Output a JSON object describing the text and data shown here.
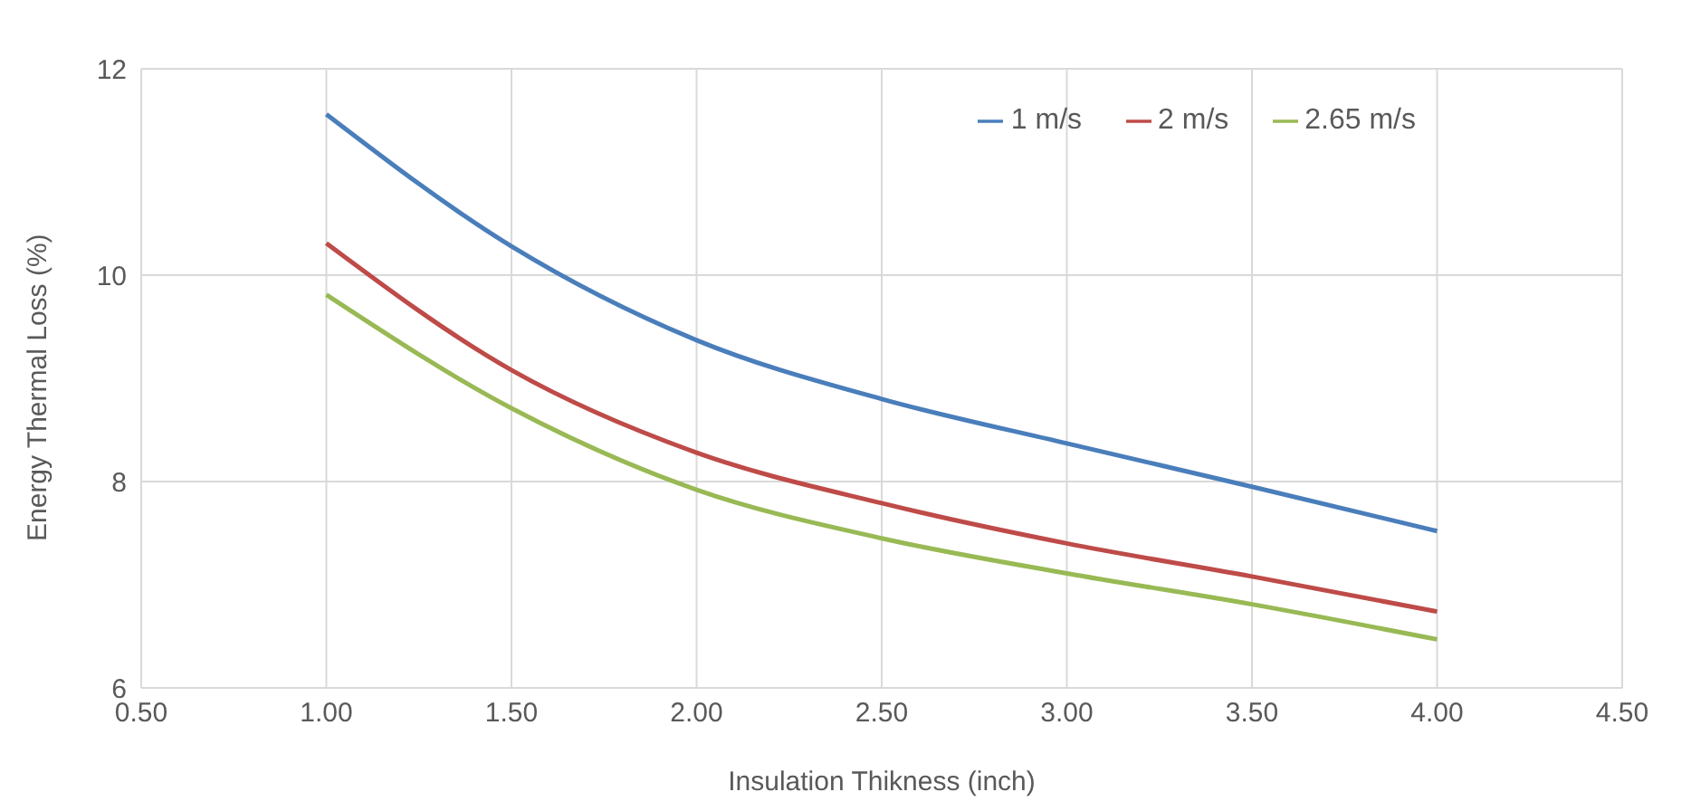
{
  "chart_data": {
    "type": "line",
    "xlabel": "Insulation Thikness (inch)",
    "ylabel": "Energy Thermal Loss (%)",
    "x": [
      1,
      1.5,
      2,
      2.5,
      3,
      3.5,
      4
    ],
    "series": [
      {
        "name": "1 m/s",
        "color": "#4a7ebb",
        "values": [
          11.56,
          10.28,
          9.37,
          8.8,
          8.37,
          7.95,
          7.52
        ]
      },
      {
        "name": "2 m/s",
        "color": "#be4b48",
        "values": [
          10.31,
          9.08,
          8.28,
          7.79,
          7.4,
          7.08,
          6.74
        ]
      },
      {
        "name": "2.65 m/s",
        "color": "#98b954",
        "values": [
          9.81,
          8.71,
          7.92,
          7.45,
          7.11,
          6.81,
          6.47
        ]
      }
    ],
    "xlim": [
      0.5,
      4.5
    ],
    "xticks": [
      {
        "value": 0.5,
        "label": "0.50"
      },
      {
        "value": 1,
        "label": "1.00"
      },
      {
        "value": 1.5,
        "label": "1.50"
      },
      {
        "value": 2,
        "label": "2.00"
      },
      {
        "value": 2.5,
        "label": "2.50"
      },
      {
        "value": 3,
        "label": "3.00"
      },
      {
        "value": 3.5,
        "label": "3.50"
      },
      {
        "value": 4,
        "label": "4.00"
      },
      {
        "value": 4.5,
        "label": "4.50"
      }
    ],
    "ylim": [
      6,
      12
    ],
    "yticks": [
      6,
      8,
      10,
      12
    ],
    "grid": true,
    "legend": "top right",
    "marker": "none",
    "line_style": "solid"
  }
}
